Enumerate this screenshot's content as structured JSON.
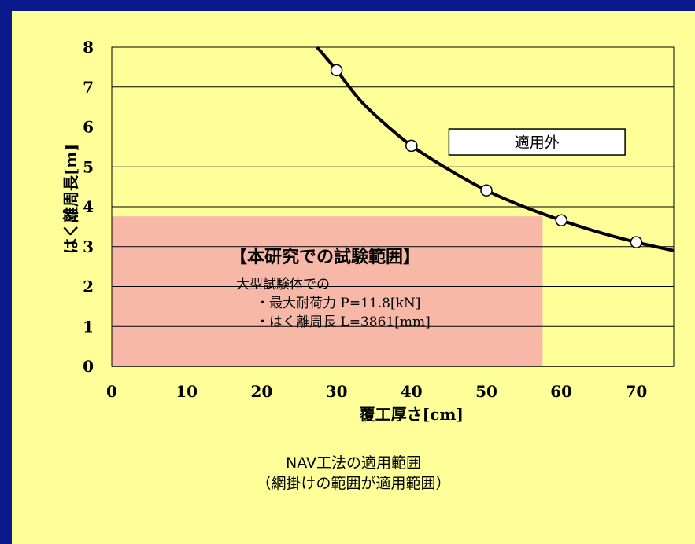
{
  "chart_data": {
    "type": "line",
    "title": "",
    "xlabel": "覆工厚さ[cm]",
    "ylabel": "はく離周長[m]",
    "xlim": [
      0,
      75
    ],
    "ylim": [
      0,
      8
    ],
    "x_ticks": [
      0,
      10,
      20,
      30,
      40,
      50,
      60,
      70
    ],
    "y_ticks": [
      0,
      1,
      2,
      3,
      4,
      5,
      6,
      7,
      8
    ],
    "grid": "horizontal",
    "points": {
      "x": [
        30,
        40,
        50,
        60,
        70
      ],
      "y": [
        7.42,
        5.53,
        4.41,
        3.66,
        3.11
      ]
    },
    "curve": {
      "x": [
        27.4,
        30,
        33,
        36,
        40,
        45,
        50,
        55,
        60,
        65,
        70,
        75
      ],
      "y": [
        8.0,
        7.42,
        6.7,
        6.15,
        5.53,
        4.93,
        4.41,
        4.0,
        3.66,
        3.36,
        3.11,
        2.9
      ]
    },
    "applicable_region": {
      "x_range": [
        0,
        57.5
      ],
      "y_range": [
        0,
        3.76
      ],
      "color": "#f7b8a8",
      "heading": "【本研究での試験範囲】",
      "lines": [
        "大型試験体での",
        "・最大耐荷力 P=11.8[kN]",
        "・はく離周長 L=3861[mm]"
      ]
    },
    "outside_label": {
      "text": "適用外",
      "x_range": [
        45,
        68.5
      ],
      "y_range": [
        5.3,
        5.95
      ]
    }
  },
  "caption": {
    "line1": "NAV工法の適用範囲",
    "line2": "（網掛けの範囲が適用範囲）"
  },
  "colors": {
    "background": "#0a1a8c",
    "panel": "#ffff99",
    "region": "#f7b8a8"
  }
}
